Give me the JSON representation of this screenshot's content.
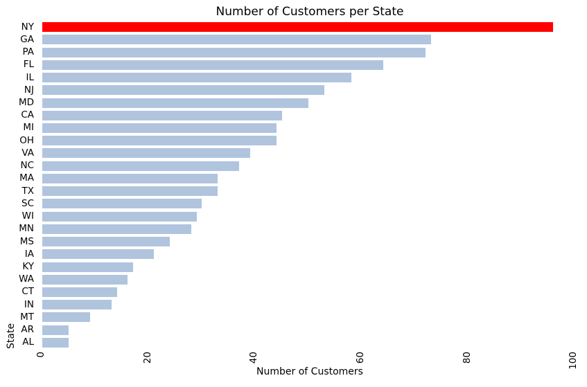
{
  "figure": {
    "background_color": "#ffffff",
    "text_color": "#000000"
  },
  "chart_data": {
    "type": "bar",
    "orientation": "horizontal",
    "title": "Number of Customers per State",
    "xlabel": "Number of Customers",
    "ylabel": "State",
    "categories": [
      "NY",
      "GA",
      "PA",
      "FL",
      "IL",
      "NJ",
      "MD",
      "CA",
      "MI",
      "OH",
      "VA",
      "NC",
      "MA",
      "TX",
      "SC",
      "WI",
      "MN",
      "MS",
      "IA",
      "KY",
      "WA",
      "CT",
      "IN",
      "MT",
      "AR",
      "AL"
    ],
    "values": [
      96,
      73,
      72,
      64,
      58,
      53,
      50,
      45,
      44,
      44,
      39,
      37,
      33,
      33,
      30,
      29,
      28,
      24,
      21,
      17,
      16,
      14,
      13,
      9,
      5,
      5
    ],
    "bar_color": "#b0c4de",
    "highlight": {
      "category": "NY",
      "color": "#ff0000"
    },
    "xticks": [
      0,
      20,
      40,
      60,
      80,
      100
    ],
    "xtick_labels": [
      "0",
      "20",
      "40",
      "60",
      "80",
      "100"
    ],
    "xlim": [
      0,
      100.5
    ],
    "xtick_rotation": 90,
    "grid": false,
    "legend": null
  }
}
